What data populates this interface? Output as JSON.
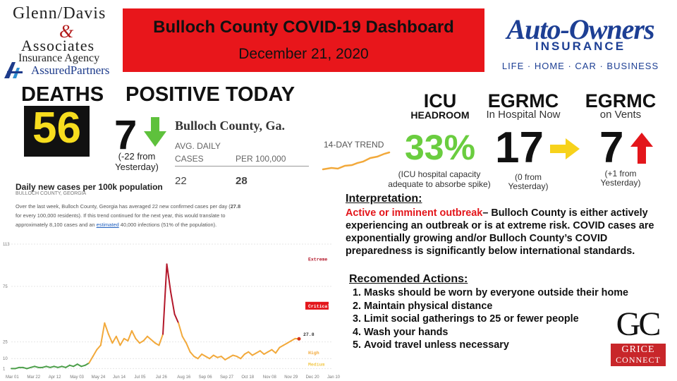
{
  "sponsor_left": {
    "line1": "Glenn/Davis",
    "amp": "&",
    "line2": "Associates",
    "line3": "Insurance Agency",
    "line4": "AssuredPartners"
  },
  "banner": {
    "title": "Bulloch County COVID-19 Dashboard",
    "date": "December 21, 2020"
  },
  "sponsor_right": {
    "name": "Auto-Owners",
    "sub": "INSURANCE",
    "tagline": "LIFE · HOME · CAR · BUSINESS"
  },
  "deaths": {
    "label": "DEATHS",
    "value": "56"
  },
  "positive": {
    "label": "POSITIVE TODAY",
    "value": "7",
    "direction": "down",
    "note": "(-22  from Yesterday)"
  },
  "county_stats": {
    "title": "Bulloch County, Ga.",
    "col1_header": "AVG. DAILY CASES",
    "col2_header": "PER 100,000",
    "col1_value": "22",
    "col2_value": "28"
  },
  "trend": {
    "label": "14-DAY TREND"
  },
  "icu": {
    "head": "ICU",
    "sub": "HEADROOM",
    "value": "33%",
    "note": "(ICU hospital capacity adequate to absorbe spike)"
  },
  "egrmc_hospital": {
    "head": "EGRMC",
    "sub": "In Hospital Now",
    "value": "17",
    "direction": "right",
    "note": "(0 from Yesterday)"
  },
  "egrmc_vents": {
    "head": "EGRMC",
    "sub": "on Vents",
    "value": "7",
    "direction": "up",
    "note": "(+1 from Yesterday)"
  },
  "interpretation": {
    "heading": "Interpretation:",
    "lead": "Active or imminent outbreak",
    "text": "– Bulloch County is either actively experiencing an outbreak or is at extreme risk. COVID cases are exponentially growing and/or Bulloch County’s COVID preparedness is significantly below international standards."
  },
  "actions": {
    "heading": "Recomended Actions:",
    "items": [
      "Masks should be worn by everyone outside their home",
      "Maintain physical distance",
      "Limit social gatherings to 25 or fewer people",
      "Wash your hands",
      "Avoid travel unless necessary"
    ]
  },
  "sponsor_bottom": {
    "mark": "GC",
    "line1": "GRICE",
    "line2": "CONNECT"
  },
  "colors": {
    "banner_red": "#e8161b",
    "deaths_yellow": "#f7dd1e",
    "icu_green": "#6acd3f",
    "down_arrow": "#5ec13c",
    "right_arrow": "#f7d21b",
    "up_arrow": "#e3161b",
    "brand_blue": "#1d3f94",
    "line_low": "#f2a93b",
    "line_high": "#b3172a"
  },
  "chart_data": {
    "type": "line",
    "title": "Daily new cases per 100k population",
    "subtitle": "BULLOCH COUNTY, GEORGIA",
    "description": {
      "part1": "Over the last week, Bulloch County, Georgia has averaged 22 new confirmed cases per day (",
      "rate": "27.8",
      "part2": " for every 100,000 residents). If this trend continued for the next year, this would translate to approximately 8,100 cases and an ",
      "link": "estimated",
      "part3": " 40,000 infections (51% of the population)."
    },
    "x_ticks": [
      "Mar 01",
      "Mar 22",
      "Apr 12",
      "May 03",
      "May 24",
      "Jun 14",
      "Jul 05",
      "Jul 26",
      "Aug 16",
      "Sep 06",
      "Sep 27",
      "Oct 18",
      "Nov 08",
      "Nov 29",
      "Dec 20",
      "Jan 10"
    ],
    "y_ticks": [
      "113",
      "75",
      "25",
      "10",
      "1"
    ],
    "ylim": [
      0,
      113
    ],
    "zones": [
      "Extreme",
      "Critical",
      "High",
      "Medium"
    ],
    "current_value_label": "27.8",
    "x": [
      0,
      4,
      8,
      12,
      16,
      20,
      24,
      28,
      32,
      36,
      40,
      44,
      48,
      52,
      56,
      60,
      64,
      68,
      72,
      76,
      80,
      84,
      88,
      92,
      96,
      100,
      104,
      108,
      112,
      116,
      120,
      124,
      128,
      132,
      136,
      140,
      144,
      148,
      152,
      156,
      160,
      164,
      168,
      172,
      176,
      180,
      184,
      188,
      192,
      196,
      200,
      204,
      208,
      212,
      216,
      220,
      224,
      228,
      232,
      236,
      240,
      244,
      248,
      252,
      256,
      260,
      264,
      268,
      272,
      276,
      280,
      284,
      288,
      292,
      296
    ],
    "values": [
      1,
      1,
      2,
      2,
      1,
      2,
      3,
      2,
      2,
      3,
      2,
      3,
      2,
      3,
      2,
      4,
      3,
      5,
      3,
      4,
      6,
      12,
      18,
      22,
      42,
      32,
      24,
      30,
      22,
      28,
      26,
      35,
      28,
      24,
      26,
      30,
      27,
      24,
      22,
      32,
      95,
      70,
      50,
      42,
      30,
      24,
      16,
      12,
      10,
      14,
      12,
      10,
      13,
      11,
      12,
      9,
      11,
      13,
      12,
      10,
      14,
      16,
      13,
      15,
      17,
      14,
      16,
      18,
      15,
      20,
      22,
      24,
      26,
      28,
      27.8
    ]
  }
}
